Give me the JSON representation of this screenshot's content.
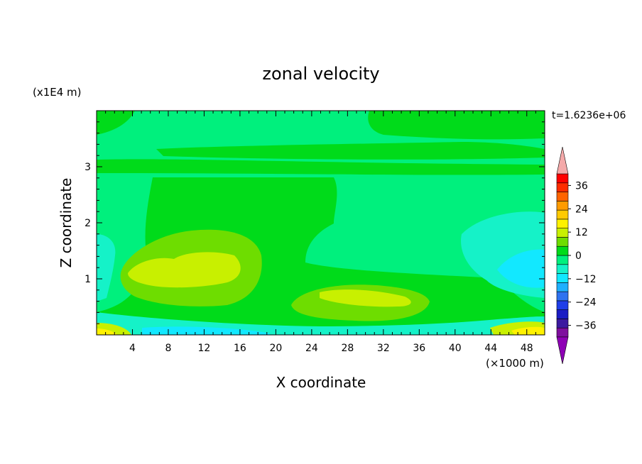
{
  "chart_data": {
    "type": "heatmap",
    "title": "zonal velocity",
    "xlabel": "X coordinate",
    "ylabel": "Z coordinate",
    "x_unit": "(×1000 m)",
    "y_unit": "(x1E4 m)",
    "time_label": "t=1.6236e+06",
    "xlim": [
      0,
      50
    ],
    "ylim": [
      0,
      4
    ],
    "x_ticks": [
      4,
      8,
      12,
      16,
      20,
      24,
      28,
      32,
      36,
      40,
      44,
      48
    ],
    "y_ticks": [
      1,
      2,
      3
    ],
    "colorbar": {
      "min": -42,
      "max": 42,
      "step": 6,
      "labels": [
        36,
        24,
        12,
        0,
        -12,
        -24,
        -36
      ],
      "colors": [
        "#7f0f9e",
        "#3c1aa0",
        "#1c1cc4",
        "#1f3ee8",
        "#2e72f0",
        "#1fb0ff",
        "#12e8ff",
        "#15f2c8",
        "#00f07d",
        "#00db1a",
        "#6edd00",
        "#c8f000",
        "#fff200",
        "#ffca00",
        "#ff9b00",
        "#ff6400",
        "#ff2c00",
        "#ff0000"
      ],
      "over_color": "#f4a9a9",
      "under_color": "#8e00b5"
    },
    "fields": {
      "background_level": "5 to 0 (light green)",
      "description_note": ""
    }
  }
}
